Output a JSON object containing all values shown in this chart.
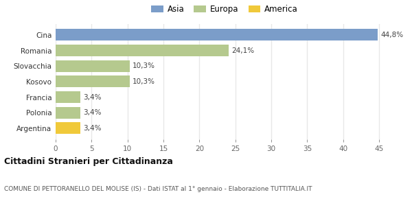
{
  "categories": [
    "Argentina",
    "Polonia",
    "Francia",
    "Kosovo",
    "Slovacchia",
    "Romania",
    "Cina"
  ],
  "values": [
    3.4,
    3.4,
    3.4,
    10.3,
    10.3,
    24.1,
    44.8
  ],
  "labels": [
    "3,4%",
    "3,4%",
    "3,4%",
    "10,3%",
    "10,3%",
    "24,1%",
    "44,8%"
  ],
  "colors": [
    "#f0c93a",
    "#b5c98e",
    "#b5c98e",
    "#b5c98e",
    "#b5c98e",
    "#b5c98e",
    "#7b9dc9"
  ],
  "legend": [
    {
      "label": "Asia",
      "color": "#7b9dc9"
    },
    {
      "label": "Europa",
      "color": "#b5c98e"
    },
    {
      "label": "America",
      "color": "#f0c93a"
    }
  ],
  "xlim": [
    0,
    47
  ],
  "xticks": [
    0,
    5,
    10,
    15,
    20,
    25,
    30,
    35,
    40,
    45
  ],
  "title": "Cittadini Stranieri per Cittadinanza",
  "subtitle": "COMUNE DI PETTORANELLO DEL MOLISE (IS) - Dati ISTAT al 1° gennaio - Elaborazione TUTTITALIA.IT",
  "background_color": "#ffffff",
  "grid_color": "#e8e8e8",
  "bar_height": 0.75
}
